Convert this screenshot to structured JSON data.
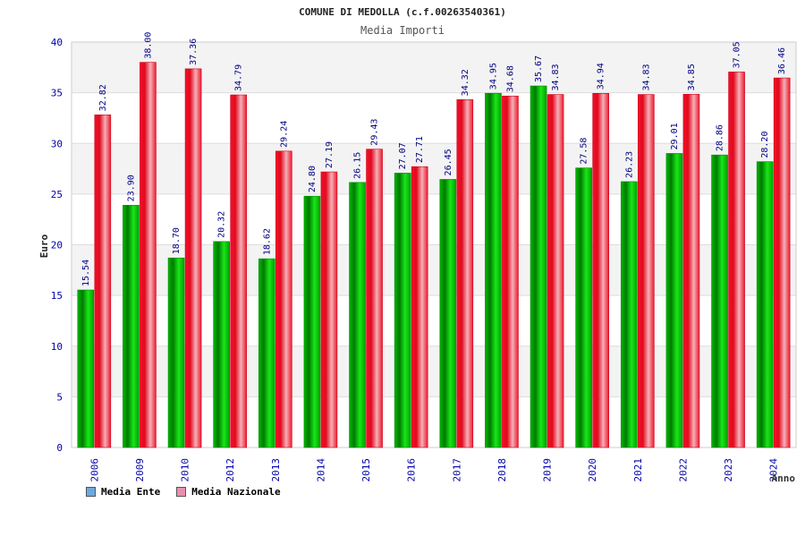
{
  "chart_data": {
    "type": "bar",
    "title": "COMUNE DI MEDOLLA (c.f.00263540361)",
    "subtitle": "Media Importi",
    "xlabel": "Anno",
    "ylabel": "Euro",
    "ylim": [
      0,
      40
    ],
    "yticks": [
      "0",
      "5",
      "10",
      "15",
      "20",
      "25",
      "30",
      "35",
      "40"
    ],
    "grid": true,
    "legend_position": "bottom-left",
    "categories": [
      "2006",
      "2009",
      "2010",
      "2012",
      "2013",
      "2014",
      "2015",
      "2016",
      "2017",
      "2018",
      "2019",
      "2020",
      "2021",
      "2022",
      "2023",
      "2024"
    ],
    "series": [
      {
        "name": "Media Ente",
        "color": "#00aa00",
        "values": [
          15.54,
          23.9,
          18.7,
          20.32,
          18.62,
          24.8,
          26.15,
          27.07,
          26.45,
          34.95,
          35.67,
          27.58,
          26.23,
          29.01,
          28.86,
          28.2
        ],
        "labels": [
          "15.54",
          "23.90",
          "18.70",
          "20.32",
          "18.62",
          "24.80",
          "26.15",
          "27.07",
          "26.45",
          "34.95",
          "35.67",
          "27.58",
          "26.23",
          "29.01",
          "28.86",
          "28.20"
        ]
      },
      {
        "name": "Media Nazionale",
        "color": "#ee1c2c",
        "values": [
          32.82,
          38.0,
          37.36,
          34.79,
          29.24,
          27.19,
          29.43,
          27.71,
          34.32,
          34.68,
          34.83,
          34.94,
          34.83,
          34.85,
          37.05,
          36.46
        ],
        "labels": [
          "32.82",
          "38.00",
          "37.36",
          "34.79",
          "29.24",
          "27.19",
          "29.43",
          "27.71",
          "34.32",
          "34.68",
          "34.83",
          "34.94",
          "34.83",
          "34.85",
          "37.05",
          "36.46"
        ]
      }
    ]
  },
  "legend": {
    "items": [
      {
        "label": "Media Ente",
        "swatch_color": "#6fa8dc"
      },
      {
        "label": "Media Nazionale",
        "swatch_color": "#e88fb0"
      }
    ]
  }
}
